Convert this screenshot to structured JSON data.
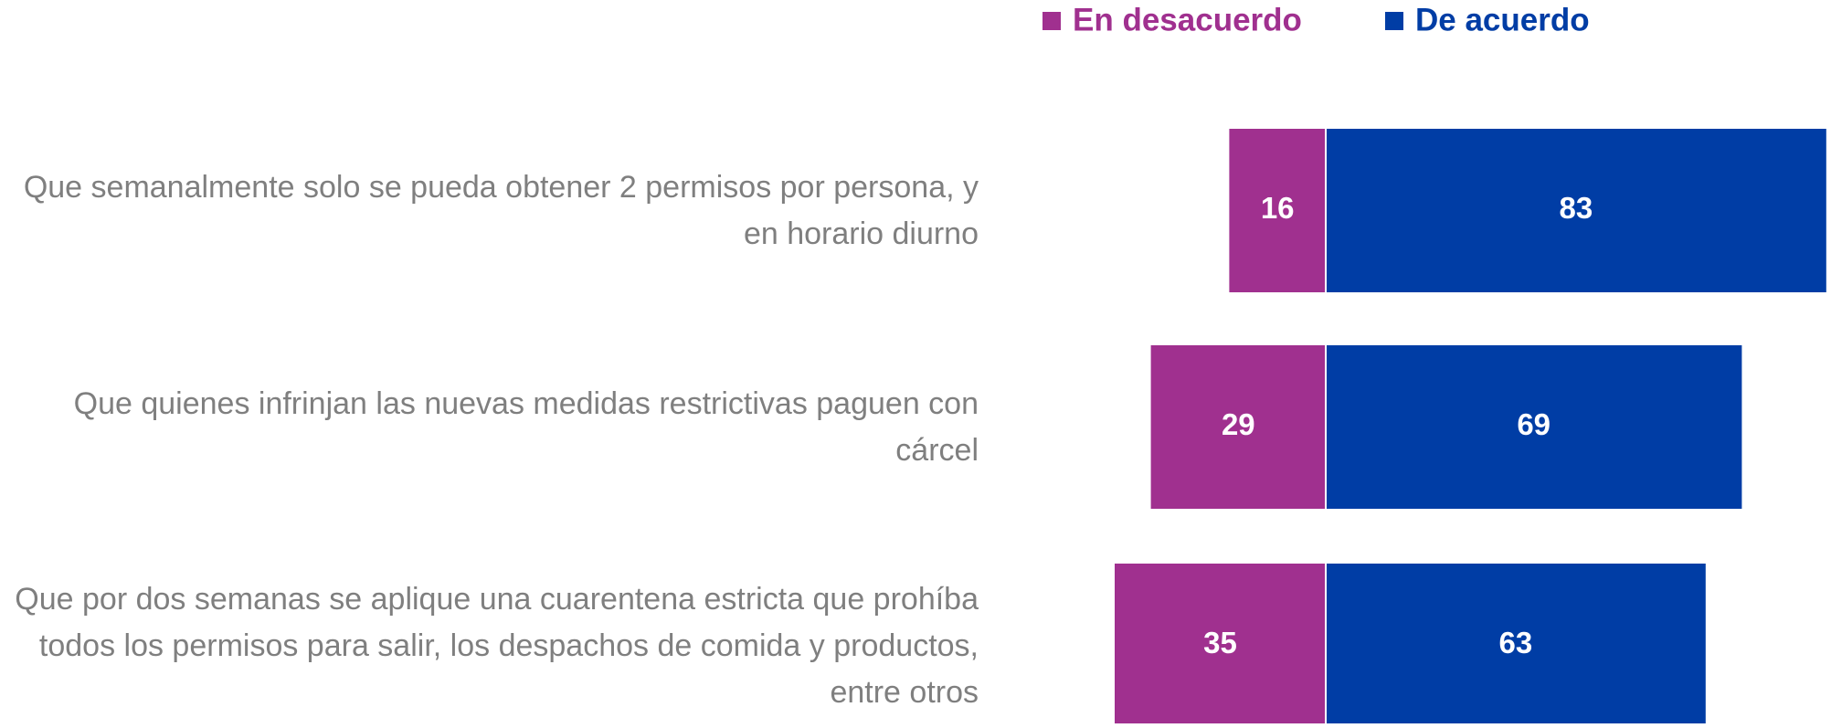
{
  "chart_data": {
    "type": "diverging_bar",
    "categories": [
      "Que semanalmente solo se pueda obtener 2 permisos por persona, y en horario diurno",
      "Que quienes infrinjan las nuevas medidas restrictivas paguen con cárcel",
      "Que por dos semanas se aplique una cuarentena estricta que prohíba todos los permisos para salir, los despachos de comida y productos, entre otros"
    ],
    "series": [
      {
        "name": "En desacuerdo",
        "color": "#a0308f",
        "values": [
          16,
          29,
          35
        ]
      },
      {
        "name": "De acuerdo",
        "color": "#003da5",
        "values": [
          83,
          69,
          63
        ]
      }
    ]
  }
}
